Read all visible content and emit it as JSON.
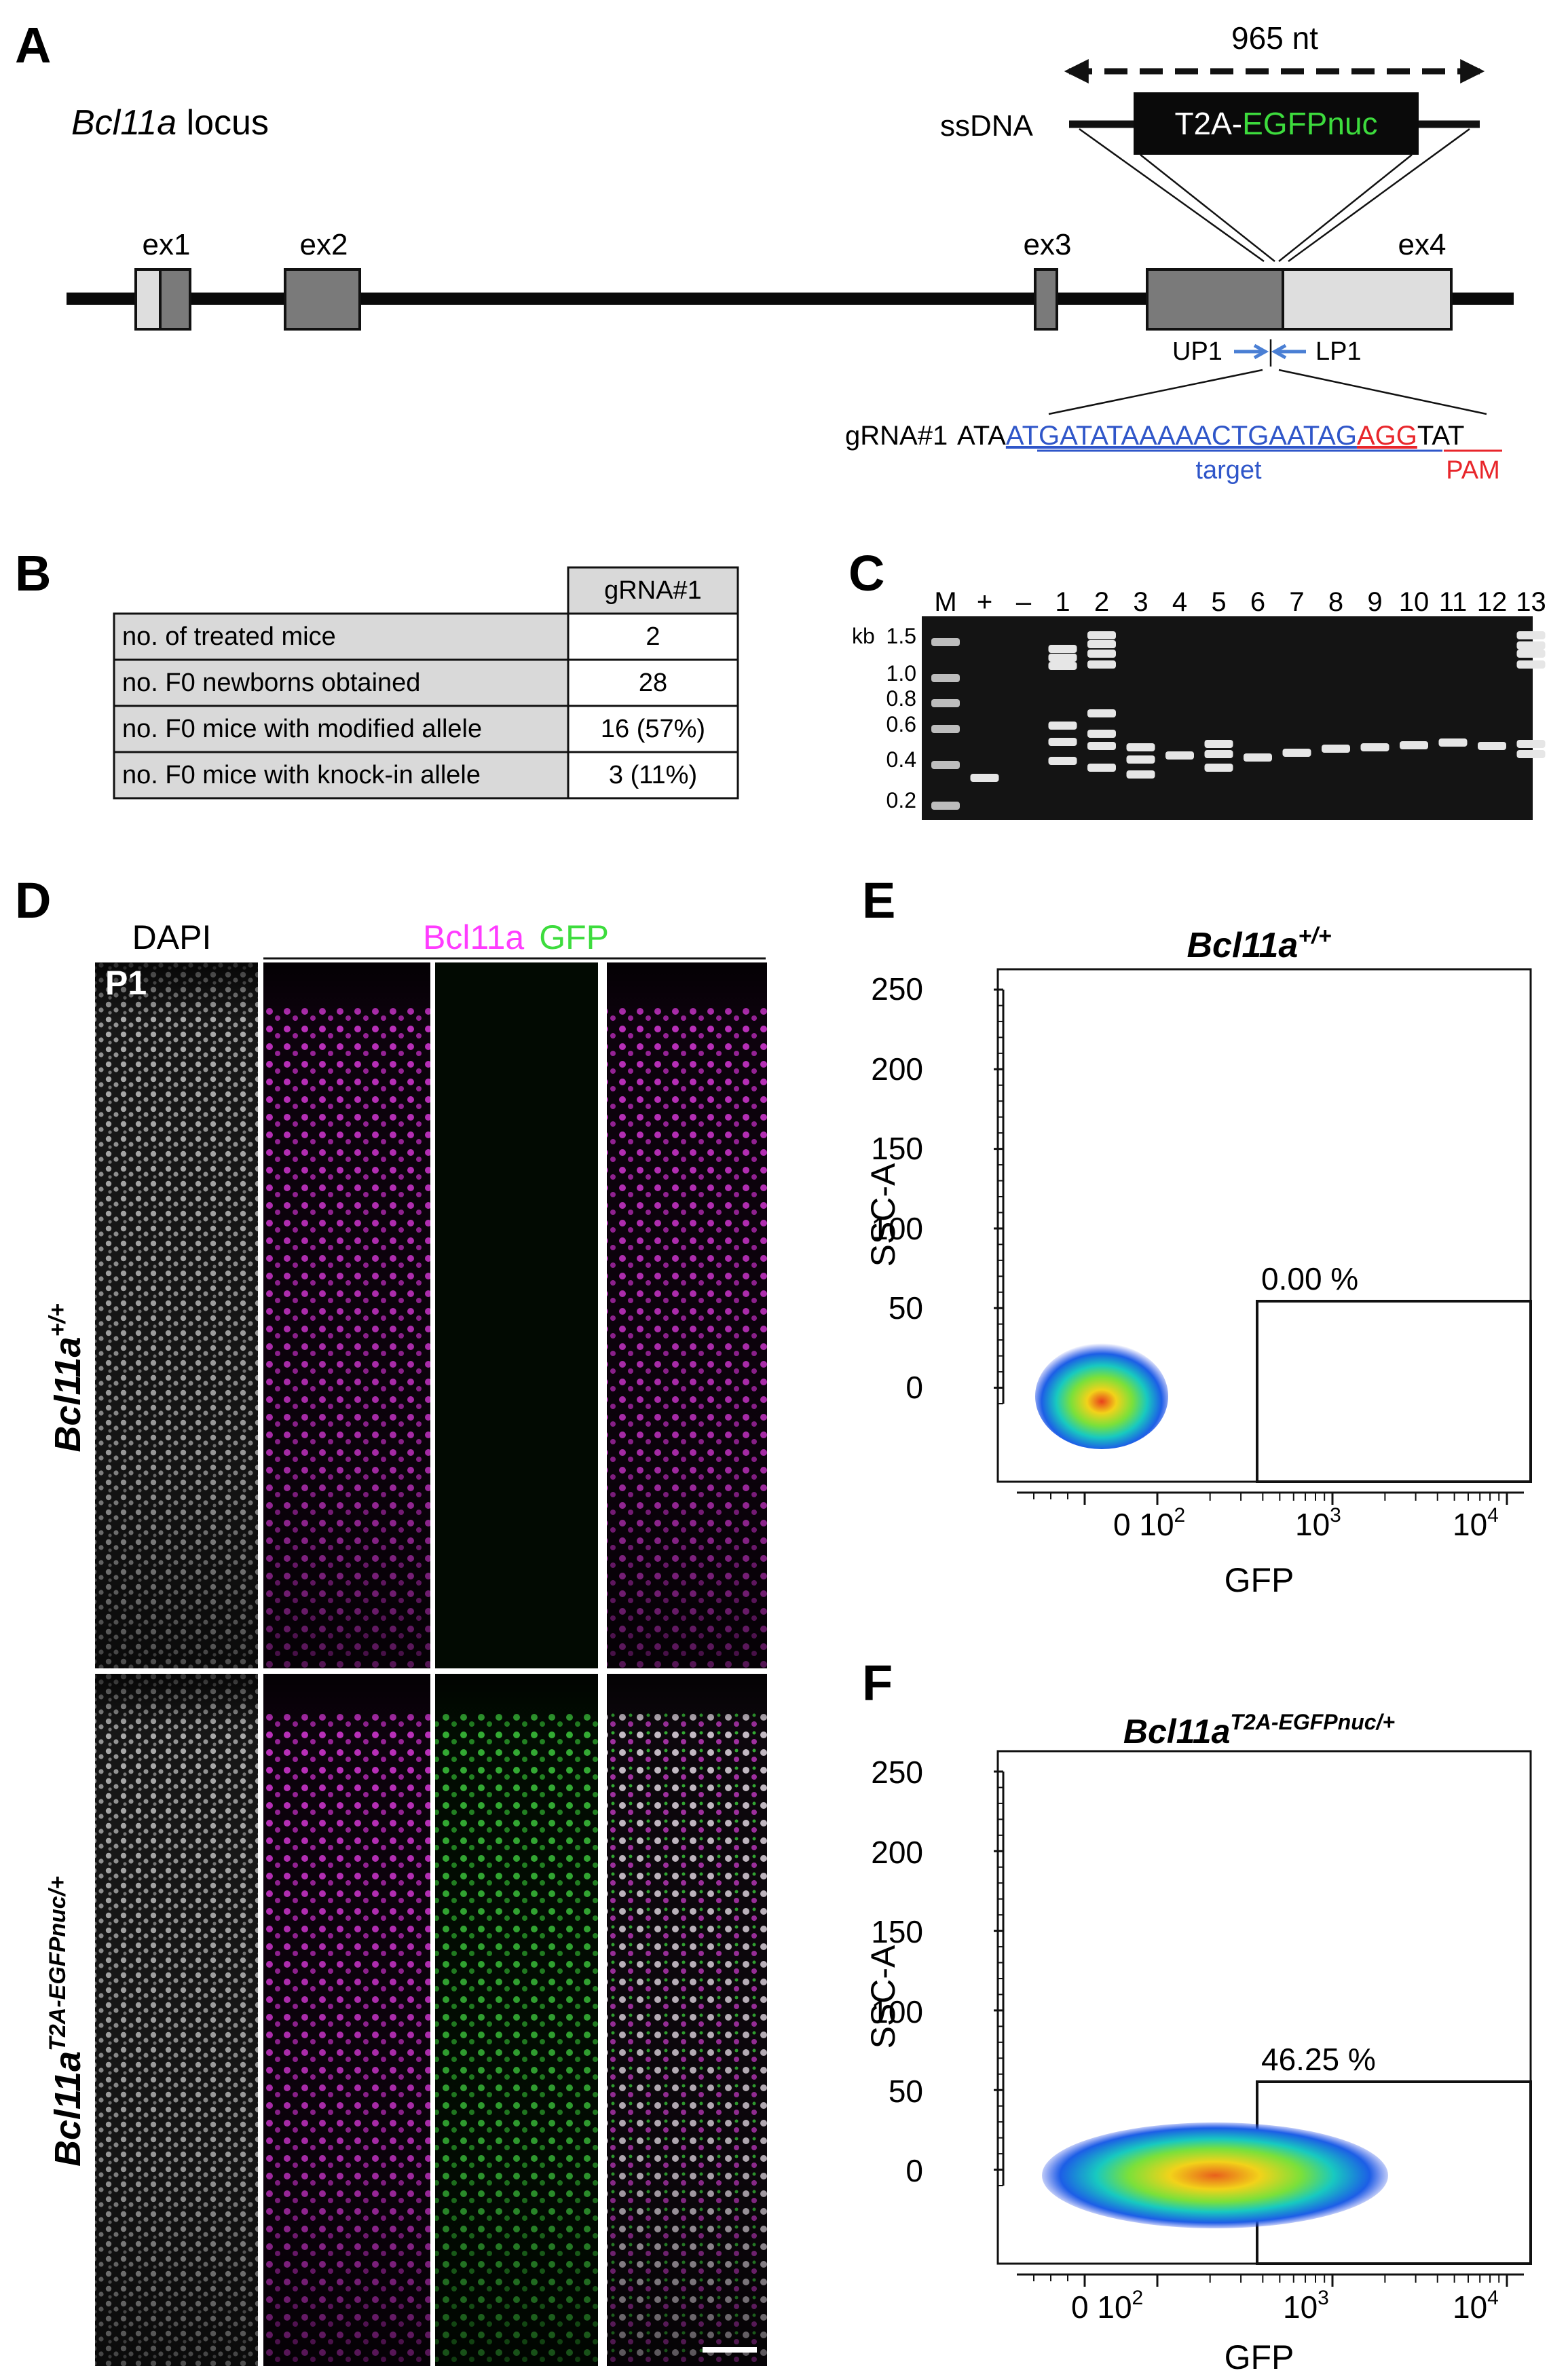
{
  "panels": {
    "A": {
      "letter": "A",
      "locus_gene": "Bcl11a",
      "locus_suffix": " locus",
      "length_label": "965 nt",
      "ssdna_label": "ssDNA",
      "insert_t2a": "T2A-",
      "insert_egfp": "EGFPnuc",
      "exons": [
        "ex1",
        "ex2",
        "ex3",
        "ex4"
      ],
      "primers": [
        "UP1",
        "LP1"
      ],
      "grna_label": "gRNA#1",
      "seq_prefix": "ATA",
      "seq_target": "ATGATATAAAAACTGAATAG",
      "seq_pam": "AGG",
      "seq_suffix": "TAT",
      "target_label": "target",
      "pam_label": "PAM",
      "colors": {
        "target": "#2f56c9",
        "pam": "#e8262b",
        "insert_green": "#3ddc3d",
        "primer_arrow": "#4a7fd4"
      }
    },
    "B": {
      "letter": "B",
      "column_header": "gRNA#1",
      "rows": [
        {
          "label": "no. of treated mice",
          "value": "2"
        },
        {
          "label": "no. F0 newborns obtained",
          "value": "28"
        },
        {
          "label": "no. F0 mice with modified allele",
          "value": "16 (57%)"
        },
        {
          "label": "no. F0 mice with knock-in allele",
          "value": "3 (11%)"
        }
      ]
    },
    "C": {
      "letter": "C",
      "lane_labels": [
        "M",
        "+",
        "–",
        "1",
        "2",
        "3",
        "4",
        "5",
        "6",
        "7",
        "8",
        "9",
        "10",
        "11",
        "12",
        "13"
      ],
      "unit": "kb",
      "size_markers": [
        "1.5",
        "1.0",
        "0.8",
        "0.6",
        "0.4",
        "0.2"
      ]
    },
    "D": {
      "letter": "D",
      "dapi_label": "DAPI",
      "bcl11a_label": "Bcl11a",
      "gfp_label": "GFP",
      "age_label": "P1",
      "row1_gene": "Bcl11a",
      "row1_sup": "+/+",
      "row2_gene": "Bcl11a",
      "row2_sup": "T2A-EGFPnuc/+",
      "colors": {
        "magenta": "#ff3cff",
        "green": "#3ddc3d"
      }
    },
    "E": {
      "letter": "E",
      "title_gene": "Bcl11a",
      "title_sup": "+/+",
      "ylabel": "SSC-A",
      "xlabel": "GFP",
      "yticks": [
        "250",
        "200",
        "150",
        "100",
        "50",
        "0"
      ],
      "xticks": [
        "0 10",
        "10",
        "10"
      ],
      "xtick_sups": [
        "2",
        "3",
        "4"
      ],
      "gate_percent": "0.00 %"
    },
    "F": {
      "letter": "F",
      "title_gene": "Bcl11a",
      "title_sup": "T2A-EGFPnuc/+",
      "ylabel": "SSC-A",
      "xlabel": "GFP",
      "yticks": [
        "250",
        "200",
        "150",
        "100",
        "50",
        "0"
      ],
      "xticks": [
        "0 10",
        "10",
        "10"
      ],
      "xtick_sups": [
        "2",
        "3",
        "4"
      ],
      "gate_percent": "46.25 %"
    }
  }
}
